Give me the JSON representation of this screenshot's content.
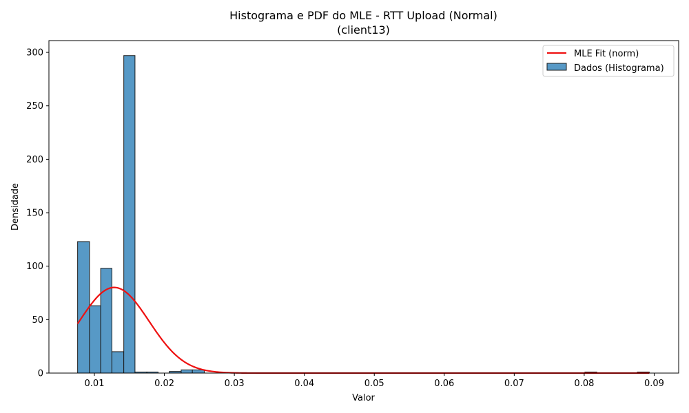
{
  "chart_data": {
    "type": "bar",
    "title_line1": "Histograma e PDF do MLE - RTT Upload (Normal)",
    "title_line2": "(client13)",
    "xlabel": "Valor",
    "ylabel": "Densidade",
    "xlim": [
      0.0035,
      0.0935
    ],
    "ylim": [
      0,
      311
    ],
    "xticks": [
      0.01,
      0.02,
      0.03,
      0.04,
      0.05,
      0.06,
      0.07,
      0.08,
      0.09
    ],
    "xtick_labels": [
      "0.01",
      "0.02",
      "0.03",
      "0.04",
      "0.05",
      "0.06",
      "0.07",
      "0.08",
      "0.09"
    ],
    "yticks": [
      0,
      50,
      100,
      150,
      200,
      250,
      300
    ],
    "ytick_labels": [
      "0",
      "50",
      "100",
      "150",
      "200",
      "250",
      "300"
    ],
    "histogram": {
      "name": "Dados (Histograma)",
      "color": "#5799c6",
      "edge_color": "#1a1a1a",
      "bins": [
        {
          "x0": 0.0076,
          "x1": 0.0093,
          "density": 123
        },
        {
          "x0": 0.0093,
          "x1": 0.0109,
          "density": 63
        },
        {
          "x0": 0.0109,
          "x1": 0.0125,
          "density": 98
        },
        {
          "x0": 0.0125,
          "x1": 0.0142,
          "density": 20
        },
        {
          "x0": 0.0142,
          "x1": 0.0158,
          "density": 297
        },
        {
          "x0": 0.0158,
          "x1": 0.0175,
          "density": 1
        },
        {
          "x0": 0.0175,
          "x1": 0.0191,
          "density": 1
        },
        {
          "x0": 0.0207,
          "x1": 0.0224,
          "density": 1.5
        },
        {
          "x0": 0.0224,
          "x1": 0.024,
          "density": 3
        },
        {
          "x0": 0.024,
          "x1": 0.0257,
          "density": 3
        },
        {
          "x0": 0.0801,
          "x1": 0.0818,
          "density": 1
        },
        {
          "x0": 0.0876,
          "x1": 0.0893,
          "density": 1
        }
      ]
    },
    "fit": {
      "name": "MLE Fit (norm)",
      "color": "#ee1111",
      "distribution": "normal",
      "mu": 0.01283,
      "sigma": 0.00498,
      "x_range": [
        0.0076,
        0.0893
      ]
    },
    "legend_position": "top-right",
    "grid": false
  }
}
